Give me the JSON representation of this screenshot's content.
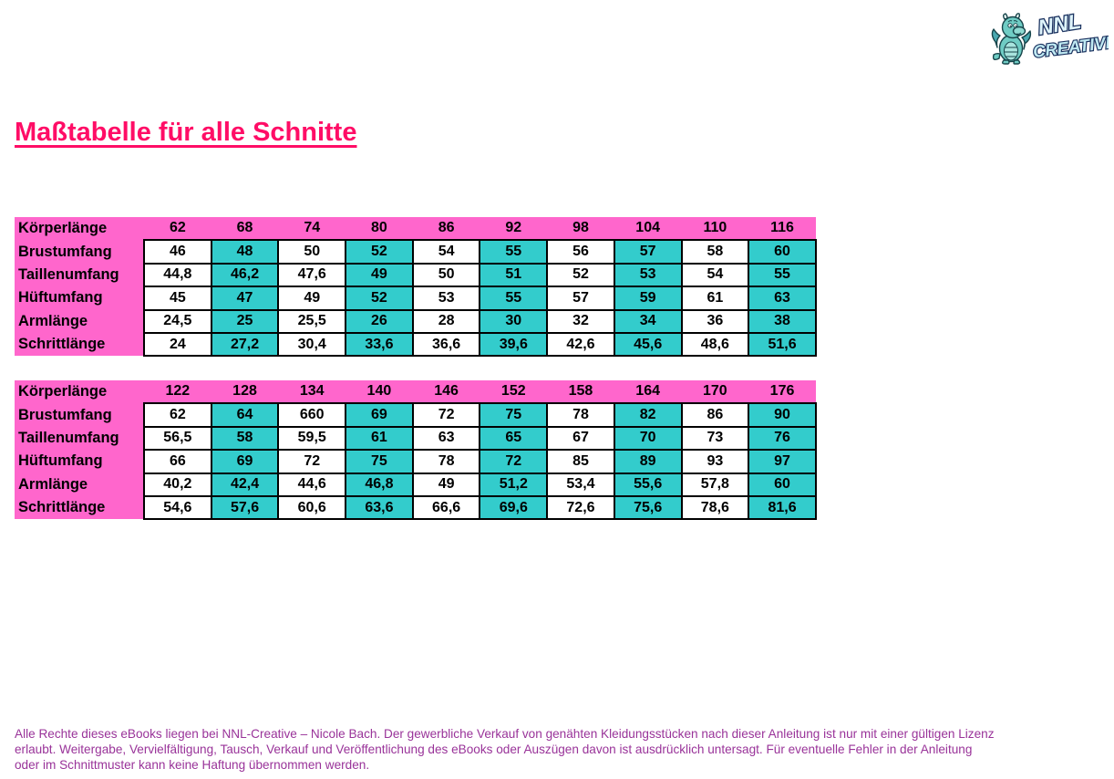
{
  "page": {
    "title": "Maßtabelle für alle Schnitte",
    "logo": {
      "name": "NNL Creative",
      "text_line1": "NNL",
      "text_line2": "CREATIVE"
    },
    "footer": {
      "line1": "Alle Rechte dieses eBooks liegen bei NNL-Creative – Nicole Bach. Der gewerbliche Verkauf von genähten Kleidungsstücken nach dieser Anleitung ist nur mit einer gültigen Lizenz",
      "line2": "erlaubt. Weitergabe, Vervielfältigung, Tausch, Verkauf und Veröffentlichung des eBooks oder Auszügen davon ist ausdrücklich untersagt. Für eventuelle Fehler in der Anleitung",
      "line3": "oder im Schnittmuster kann keine Haftung übernommen werden."
    },
    "colors": {
      "header_pink": "#ff66cc",
      "cell_teal": "#33cccc",
      "cell_white": "#ffffff",
      "title_pink": "#ff0d66",
      "footer_purple": "#993399",
      "border_black": "#000000",
      "logo_teal": "#6fccc4"
    }
  },
  "tables": [
    {
      "header_label": "Körperlänge",
      "header_values": [
        "62",
        "68",
        "74",
        "80",
        "86",
        "92",
        "98",
        "104",
        "110",
        "116"
      ],
      "rows": [
        {
          "label": "Brustumfang",
          "values": [
            "46",
            "48",
            "50",
            "52",
            "54",
            "55",
            "56",
            "57",
            "58",
            "60"
          ]
        },
        {
          "label": "Taillenumfang",
          "values": [
            "44,8",
            "46,2",
            "47,6",
            "49",
            "50",
            "51",
            "52",
            "53",
            "54",
            "55"
          ]
        },
        {
          "label": "Hüftumfang",
          "values": [
            "45",
            "47",
            "49",
            "52",
            "53",
            "55",
            "57",
            "59",
            "61",
            "63"
          ]
        },
        {
          "label": "Armlänge",
          "values": [
            "24,5",
            "25",
            "25,5",
            "26",
            "28",
            "30",
            "32",
            "34",
            "36",
            "38"
          ]
        },
        {
          "label": "Schrittlänge",
          "values": [
            "24",
            "27,2",
            "30,4",
            "33,6",
            "36,6",
            "39,6",
            "42,6",
            "45,6",
            "48,6",
            "51,6"
          ]
        }
      ]
    },
    {
      "header_label": "Körperlänge",
      "header_values": [
        "122",
        "128",
        "134",
        "140",
        "146",
        "152",
        "158",
        "164",
        "170",
        "176"
      ],
      "rows": [
        {
          "label": "Brustumfang",
          "values": [
            "62",
            "64",
            "660",
            "69",
            "72",
            "75",
            "78",
            "82",
            "86",
            "90"
          ]
        },
        {
          "label": "Taillenumfang",
          "values": [
            "56,5",
            "58",
            "59,5",
            "61",
            "63",
            "65",
            "67",
            "70",
            "73",
            "76"
          ]
        },
        {
          "label": "Hüftumfang",
          "values": [
            "66",
            "69",
            "72",
            "75",
            "78",
            "72",
            "85",
            "89",
            "93",
            "97"
          ]
        },
        {
          "label": "Armlänge",
          "values": [
            "40,2",
            "42,4",
            "44,6",
            "46,8",
            "49",
            "51,2",
            "53,4",
            "55,6",
            "57,8",
            "60"
          ]
        },
        {
          "label": "Schrittlänge",
          "values": [
            "54,6",
            "57,6",
            "60,6",
            "63,6",
            "66,6",
            "69,6",
            "72,6",
            "75,6",
            "78,6",
            "81,6"
          ]
        }
      ]
    }
  ]
}
